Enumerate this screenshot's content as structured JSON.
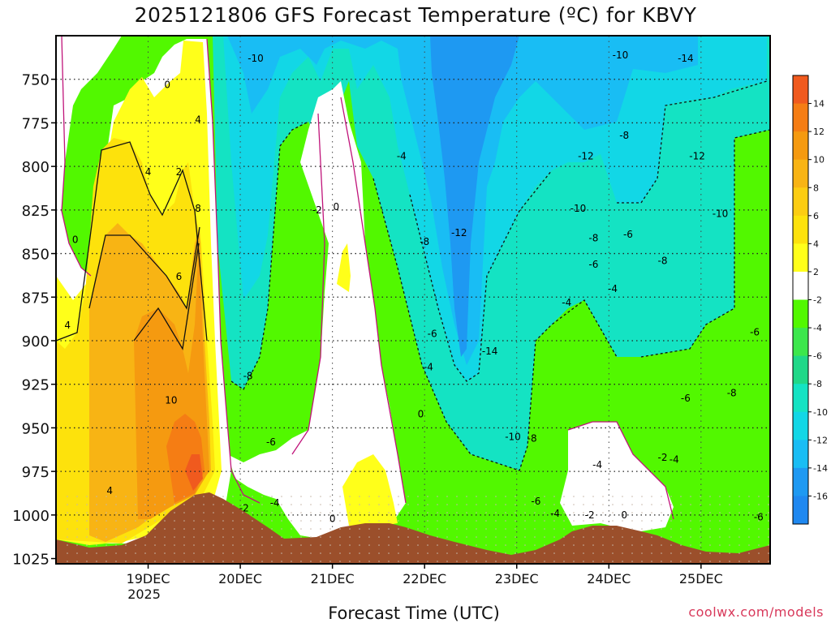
{
  "chart_data": {
    "type": "heatmap",
    "title": "2025121806 GFS Forecast Temperature (ºC) for KBVY",
    "xlabel": "Forecast Time (UTC)",
    "ylabel": "",
    "credit": "coolwx.com/models",
    "y_axis": {
      "ticks": [
        "750",
        "775",
        "800",
        "825",
        "850",
        "875",
        "900",
        "925",
        "950",
        "975",
        "1000",
        "1025"
      ],
      "range": [
        725,
        1028
      ],
      "inverted": true
    },
    "x_axis": {
      "ticks": [
        {
          "label": "19DEC",
          "sublabel": "2025",
          "value": 24
        },
        {
          "label": "20DEC",
          "sublabel": "",
          "value": 48
        },
        {
          "label": "21DEC",
          "sublabel": "",
          "value": 72
        },
        {
          "label": "22DEC",
          "sublabel": "",
          "value": 96
        },
        {
          "label": "23DEC",
          "sublabel": "",
          "value": 120
        },
        {
          "label": "24DEC",
          "sublabel": "",
          "value": 144
        },
        {
          "label": "25DEC",
          "sublabel": "",
          "value": 168
        }
      ],
      "range": [
        0,
        186
      ]
    },
    "grid": true,
    "colorbar": {
      "labels": [
        "14",
        "12",
        "10",
        "8",
        "6",
        "4",
        "2",
        "-2",
        "-4",
        "-6",
        "-8",
        "-10",
        "-12",
        "-14",
        "-16"
      ],
      "colors": [
        "#f05a1e",
        "#f57d14",
        "#f59a10",
        "#f8b414",
        "#fccd12",
        "#fde20c",
        "#ffff1a",
        "#ffffff",
        "#52f800",
        "#3ce74c",
        "#20d888",
        "#14e3c3",
        "#12d7e6",
        "#19bdf4",
        "#1e99f2",
        "#1f88f0"
      ]
    },
    "contour_labels": [
      {
        "text": "-10",
        "x": 52,
        "p": 740
      },
      {
        "text": "0",
        "x": 29,
        "p": 755
      },
      {
        "text": "4",
        "x": 37,
        "p": 775
      },
      {
        "text": "4",
        "x": 24,
        "p": 805
      },
      {
        "text": "2",
        "x": 32,
        "p": 805
      },
      {
        "text": "8",
        "x": 37,
        "p": 826
      },
      {
        "text": "0",
        "x": 5,
        "p": 844
      },
      {
        "text": "6",
        "x": 32,
        "p": 865
      },
      {
        "text": "4",
        "x": 3,
        "p": 893
      },
      {
        "text": "10",
        "x": 30,
        "p": 936
      },
      {
        "text": "4",
        "x": 14,
        "p": 988
      },
      {
        "text": "-2",
        "x": 68,
        "p": 827
      },
      {
        "text": "0",
        "x": 73,
        "p": 825
      },
      {
        "text": "-4",
        "x": 90,
        "p": 796
      },
      {
        "text": "-8",
        "x": 50,
        "p": 922
      },
      {
        "text": "-6",
        "x": 56,
        "p": 960
      },
      {
        "text": "-4",
        "x": 57,
        "p": 995
      },
      {
        "text": "-2",
        "x": 49,
        "p": 998
      },
      {
        "text": "0",
        "x": 72,
        "p": 1004
      },
      {
        "text": "-8",
        "x": 96,
        "p": 845
      },
      {
        "text": "-12",
        "x": 105,
        "p": 840
      },
      {
        "text": "-6",
        "x": 98,
        "p": 898
      },
      {
        "text": "-4",
        "x": 97,
        "p": 917
      },
      {
        "text": "0",
        "x": 95,
        "p": 944
      },
      {
        "text": "-14",
        "x": 113,
        "p": 908
      },
      {
        "text": "-10",
        "x": 119,
        "p": 957
      },
      {
        "text": "-8",
        "x": 124,
        "p": 958
      },
      {
        "text": "-6",
        "x": 125,
        "p": 994
      },
      {
        "text": "-4",
        "x": 130,
        "p": 1001
      },
      {
        "text": "-10",
        "x": 147,
        "p": 738
      },
      {
        "text": "-14",
        "x": 164,
        "p": 740
      },
      {
        "text": "-8",
        "x": 148,
        "p": 784
      },
      {
        "text": "-12",
        "x": 138,
        "p": 796
      },
      {
        "text": "-10",
        "x": 136,
        "p": 826
      },
      {
        "text": "-8",
        "x": 140,
        "p": 843
      },
      {
        "text": "-6",
        "x": 149,
        "p": 841
      },
      {
        "text": "-6",
        "x": 140,
        "p": 858
      },
      {
        "text": "-4",
        "x": 145,
        "p": 872
      },
      {
        "text": "-4",
        "x": 133,
        "p": 880
      },
      {
        "text": "-8",
        "x": 158,
        "p": 856
      },
      {
        "text": "-12",
        "x": 167,
        "p": 796
      },
      {
        "text": "-10",
        "x": 173,
        "p": 829
      },
      {
        "text": "-6",
        "x": 182,
        "p": 897
      },
      {
        "text": "-8",
        "x": 176,
        "p": 932
      },
      {
        "text": "-6",
        "x": 164,
        "p": 935
      },
      {
        "text": "-4",
        "x": 141,
        "p": 973
      },
      {
        "text": "-2",
        "x": 158,
        "p": 969
      },
      {
        "text": "-4",
        "x": 161,
        "p": 970
      },
      {
        "text": "-2",
        "x": 139,
        "p": 1002
      },
      {
        "text": "0",
        "x": 148,
        "p": 1002
      },
      {
        "text": "-6",
        "x": 183,
        "p": 1003
      }
    ]
  }
}
